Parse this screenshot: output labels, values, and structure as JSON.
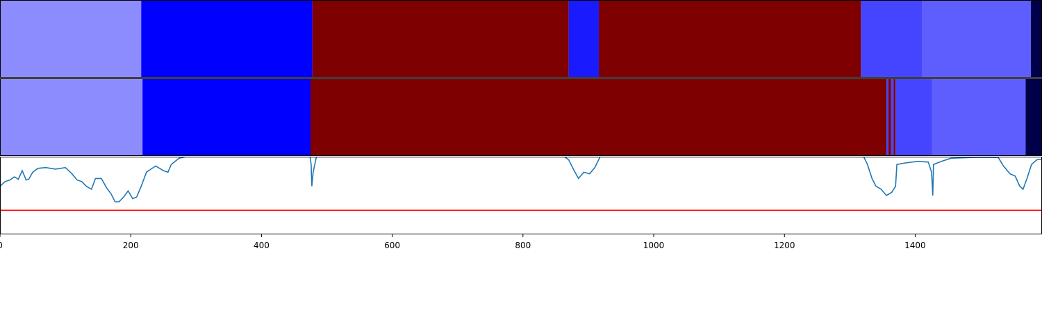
{
  "chart_data": [
    {
      "type": "segments",
      "track": "top",
      "xlim": [
        0,
        1594
      ],
      "segments": [
        {
          "start": 0,
          "end": 216,
          "color": "#8c8cff"
        },
        {
          "start": 216,
          "end": 478,
          "color": "#0000ff"
        },
        {
          "start": 478,
          "end": 870,
          "color": "#7f0000"
        },
        {
          "start": 870,
          "end": 916,
          "color": "#1a1aff"
        },
        {
          "start": 916,
          "end": 1317,
          "color": "#7f0000"
        },
        {
          "start": 1317,
          "end": 1411,
          "color": "#4545ff"
        },
        {
          "start": 1411,
          "end": 1577,
          "color": "#5e5eff"
        },
        {
          "start": 1577,
          "end": 1594,
          "color": "#00004a"
        }
      ]
    },
    {
      "type": "segments",
      "track": "middle",
      "xlim": [
        0,
        1594
      ],
      "segments": [
        {
          "start": 0,
          "end": 218,
          "color": "#8c8cff"
        },
        {
          "start": 218,
          "end": 475,
          "color": "#0000ff"
        },
        {
          "start": 475,
          "end": 1356,
          "color": "#7f0000"
        },
        {
          "start": 1356,
          "end": 1359,
          "color": "#4545ff"
        },
        {
          "start": 1359,
          "end": 1363,
          "color": "#7f0000"
        },
        {
          "start": 1363,
          "end": 1367,
          "color": "#4545ff"
        },
        {
          "start": 1367,
          "end": 1370,
          "color": "#7f0000"
        },
        {
          "start": 1370,
          "end": 1426,
          "color": "#4545ff"
        },
        {
          "start": 1426,
          "end": 1569,
          "color": "#5e5eff"
        },
        {
          "start": 1569,
          "end": 1594,
          "color": "#00004a"
        }
      ]
    },
    {
      "type": "line",
      "track": "bottom",
      "xlim": [
        0,
        1594
      ],
      "ylim": [
        0,
        1
      ],
      "threshold": {
        "y": 0.31,
        "color": "#ff0000"
      },
      "series": [
        {
          "color": "#1f77b4",
          "points": [
            [
              0,
              0.62
            ],
            [
              8,
              0.68
            ],
            [
              15,
              0.7
            ],
            [
              22,
              0.74
            ],
            [
              28,
              0.71
            ],
            [
              34,
              0.82
            ],
            [
              40,
              0.7
            ],
            [
              44,
              0.71
            ],
            [
              50,
              0.8
            ],
            [
              58,
              0.85
            ],
            [
              70,
              0.86
            ],
            [
              85,
              0.84
            ],
            [
              100,
              0.86
            ],
            [
              110,
              0.78
            ],
            [
              118,
              0.7
            ],
            [
              125,
              0.68
            ],
            [
              132,
              0.62
            ],
            [
              140,
              0.58
            ],
            [
              146,
              0.72
            ],
            [
              155,
              0.72
            ],
            [
              163,
              0.6
            ],
            [
              170,
              0.52
            ],
            [
              176,
              0.42
            ],
            [
              182,
              0.42
            ],
            [
              189,
              0.48
            ],
            [
              196,
              0.56
            ],
            [
              203,
              0.46
            ],
            [
              209,
              0.48
            ],
            [
              216,
              0.62
            ],
            [
              224,
              0.8
            ],
            [
              238,
              0.88
            ],
            [
              250,
              0.82
            ],
            [
              257,
              0.8
            ],
            [
              262,
              0.9
            ],
            [
              274,
              0.98
            ],
            [
              285,
              1.0
            ],
            [
              300,
              1.02
            ],
            [
              350,
              1.02
            ],
            [
              430,
              1.02
            ],
            [
              474,
              1.02
            ],
            [
              476,
              0.9
            ],
            [
              477,
              0.62
            ],
            [
              479,
              0.8
            ],
            [
              484,
              1.0
            ],
            [
              500,
              1.02
            ],
            [
              700,
              1.02
            ],
            [
              860,
              1.02
            ],
            [
              870,
              0.96
            ],
            [
              877,
              0.84
            ],
            [
              885,
              0.72
            ],
            [
              893,
              0.8
            ],
            [
              902,
              0.78
            ],
            [
              910,
              0.86
            ],
            [
              918,
              1.0
            ],
            [
              930,
              1.02
            ],
            [
              1100,
              1.02
            ],
            [
              1320,
              1.02
            ],
            [
              1327,
              0.9
            ],
            [
              1334,
              0.72
            ],
            [
              1340,
              0.62
            ],
            [
              1348,
              0.58
            ],
            [
              1356,
              0.5
            ],
            [
              1364,
              0.54
            ],
            [
              1370,
              0.62
            ],
            [
              1372,
              0.9
            ],
            [
              1385,
              0.92
            ],
            [
              1405,
              0.94
            ],
            [
              1420,
              0.93
            ],
            [
              1425,
              0.8
            ],
            [
              1427,
              0.5
            ],
            [
              1428,
              0.9
            ],
            [
              1440,
              0.94
            ],
            [
              1455,
              0.98
            ],
            [
              1490,
              0.99
            ],
            [
              1527,
              0.99
            ],
            [
              1535,
              0.88
            ],
            [
              1545,
              0.78
            ],
            [
              1553,
              0.75
            ],
            [
              1560,
              0.62
            ],
            [
              1565,
              0.58
            ],
            [
              1571,
              0.72
            ],
            [
              1578,
              0.9
            ],
            [
              1586,
              0.96
            ],
            [
              1594,
              0.97
            ]
          ]
        }
      ]
    },
    {
      "type": "axis",
      "track": "xaxis",
      "xlim": [
        0,
        1594
      ],
      "xticks": [
        0,
        200,
        400,
        600,
        800,
        1000,
        1200,
        1400
      ],
      "xtick_labels": [
        "0",
        "200",
        "400",
        "600",
        "800",
        "1000",
        "1200",
        "1400"
      ]
    }
  ]
}
